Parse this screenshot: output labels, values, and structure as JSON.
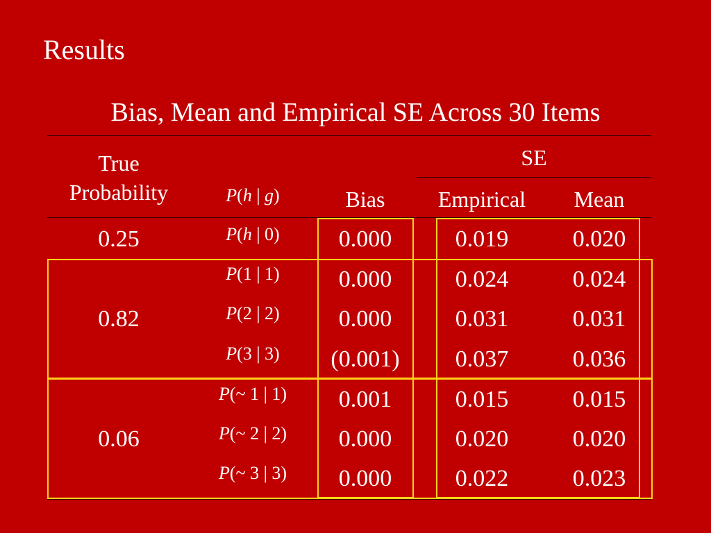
{
  "slide": {
    "title": "Results",
    "table_title": "Bias, Mean and Empirical SE Across 30 Items"
  },
  "table": {
    "headers": {
      "true_probability": "True Probability",
      "true_line1": "True",
      "true_line2": "Probability",
      "conditional": "P(h|g)",
      "bias": "Bias",
      "se_group": "SE",
      "empirical": "Empirical",
      "mean": "Mean"
    },
    "groups": [
      {
        "true_probability": "0.25",
        "rows": [
          {
            "conditional": "P(h|0)",
            "bias": "0.000",
            "empirical": "0.019",
            "mean": "0.020"
          }
        ]
      },
      {
        "true_probability": "0.82",
        "rows": [
          {
            "conditional": "P(1|1)",
            "bias": "0.000",
            "empirical": "0.024",
            "mean": "0.024"
          },
          {
            "conditional": "P(2|2)",
            "bias": "0.000",
            "empirical": "0.031",
            "mean": "0.031"
          },
          {
            "conditional": "P(3|3)",
            "bias": "(0.001)",
            "empirical": "0.037",
            "mean": "0.036"
          }
        ]
      },
      {
        "true_probability": "0.06",
        "rows": [
          {
            "conditional": "P(~ 1|1)",
            "bias": "0.001",
            "empirical": "0.015",
            "mean": "0.015"
          },
          {
            "conditional": "P(~ 2|2)",
            "bias": "0.000",
            "empirical": "0.020",
            "mean": "0.020"
          },
          {
            "conditional": "P(~ 3|3)",
            "bias": "0.000",
            "empirical": "0.022",
            "mean": "0.023"
          }
        ]
      }
    ]
  },
  "colors": {
    "background": "#c00000",
    "text": "#ffffff",
    "highlight_box": "#ffd21a",
    "rule": "#3a0000"
  }
}
